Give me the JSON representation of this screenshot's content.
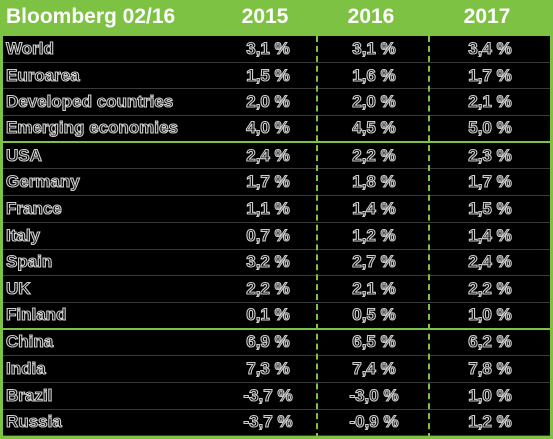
{
  "header": {
    "title": "Bloomberg 02/16",
    "years": [
      "2015",
      "2016",
      "2017"
    ]
  },
  "rows": [
    {
      "label": "World",
      "v2015": "3,1 %",
      "v2016": "3,1 %",
      "v2017": "3,4 %"
    },
    {
      "label": "Euroarea",
      "v2015": "1,5 %",
      "v2016": "1,6 %",
      "v2017": "1,7 %"
    },
    {
      "label": "Developed countries",
      "v2015": "2,0 %",
      "v2016": "2,0 %",
      "v2017": "2,1 %"
    },
    {
      "label": "Emerging economies",
      "v2015": "4,0 %",
      "v2016": "4,5 %",
      "v2017": "5,0 %"
    },
    {
      "label": "USA",
      "v2015": "2,4 %",
      "v2016": "2,2 %",
      "v2017": "2,3 %"
    },
    {
      "label": "Germany",
      "v2015": "1,7 %",
      "v2016": "1,8 %",
      "v2017": "1,7 %"
    },
    {
      "label": "France",
      "v2015": "1,1 %",
      "v2016": "1,4 %",
      "v2017": "1,5 %"
    },
    {
      "label": "Italy",
      "v2015": "0,7 %",
      "v2016": "1,2 %",
      "v2017": "1,4 %"
    },
    {
      "label": "Spain",
      "v2015": "3,2 %",
      "v2016": "2,7 %",
      "v2017": "2,4 %"
    },
    {
      "label": "UK",
      "v2015": "2,2 %",
      "v2016": "2,1 %",
      "v2017": "2,2 %"
    },
    {
      "label": "Finland",
      "v2015": "0,1 %",
      "v2016": "0,5 %",
      "v2017": "1,0 %"
    },
    {
      "label": "China",
      "v2015": "6,9 %",
      "v2016": "6,5 %",
      "v2017": "6,2 %"
    },
    {
      "label": "India",
      "v2015": "7,3 %",
      "v2016": "7,4 %",
      "v2017": "7,8 %"
    },
    {
      "label": "Brazil",
      "v2015": "-3,7 %",
      "v2016": "-3,0 %",
      "v2017": "1,0 %"
    },
    {
      "label": "Russia",
      "v2015": "-3,7 %",
      "v2016": "-0,9 %",
      "v2017": "1,2 %"
    }
  ],
  "colors": {
    "accent_green": "#7dc242",
    "row_bg": "#000000",
    "header_text": "#ffffff"
  }
}
